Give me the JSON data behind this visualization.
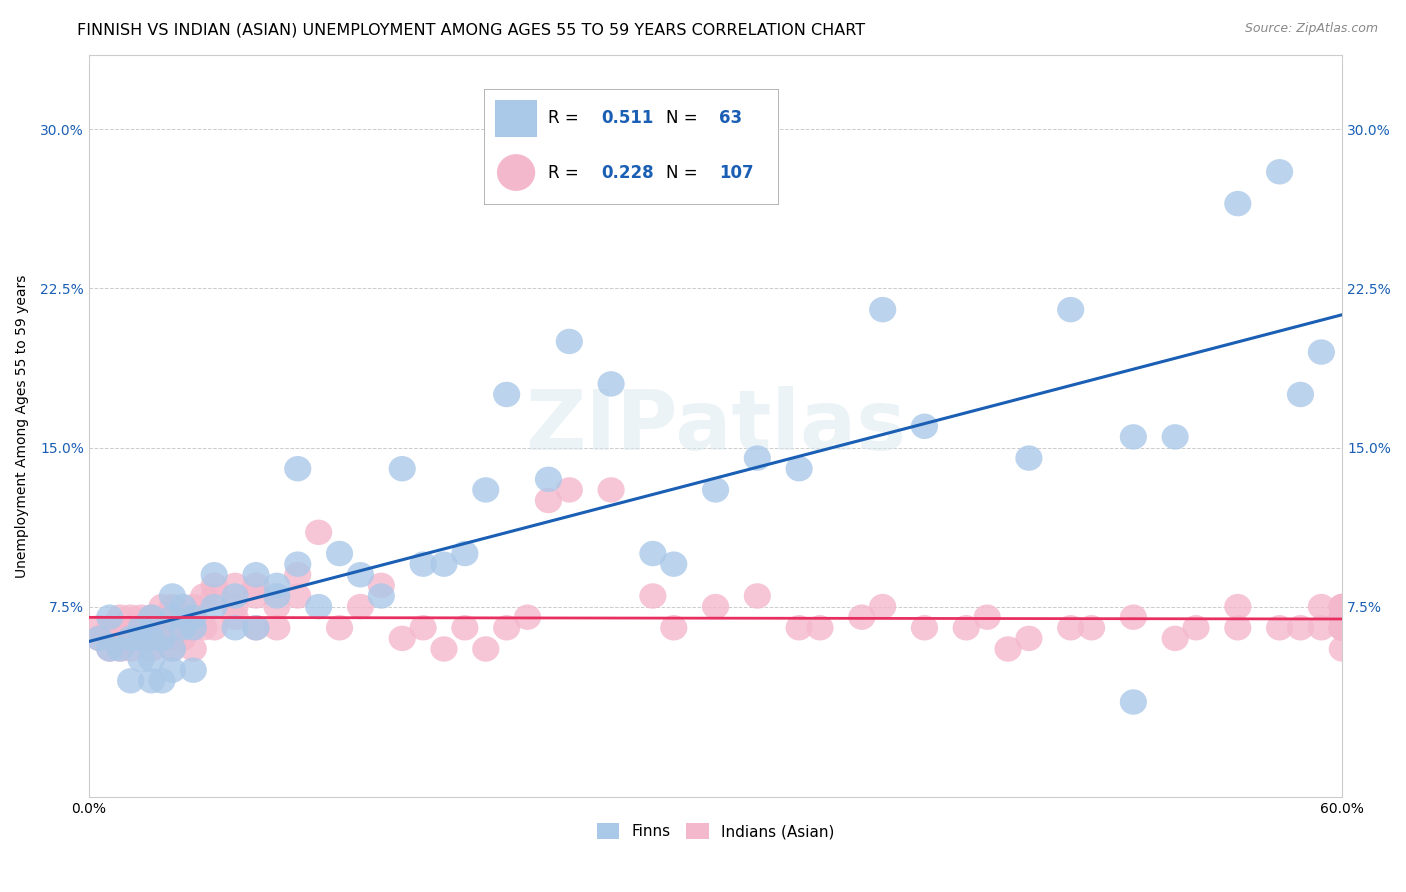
{
  "title": "FINNISH VS INDIAN (ASIAN) UNEMPLOYMENT AMONG AGES 55 TO 59 YEARS CORRELATION CHART",
  "source": "Source: ZipAtlas.com",
  "ylabel": "Unemployment Among Ages 55 to 59 years",
  "xlim": [
    0.0,
    0.6
  ],
  "ylim": [
    -0.015,
    0.335
  ],
  "yticks": [
    0.075,
    0.15,
    0.225,
    0.3
  ],
  "yticklabels": [
    "7.5%",
    "15.0%",
    "22.5%",
    "30.0%"
  ],
  "finn_color": "#aac8e8",
  "indian_color": "#f4b8cc",
  "finn_line_color": "#1a5fb4",
  "indian_line_color": "#e83060",
  "finn_R": 0.511,
  "finn_N": 63,
  "indian_R": 0.228,
  "indian_N": 107,
  "background_color": "#ffffff",
  "grid_color": "#cccccc",
  "watermark": "ZIPatlas",
  "title_fontsize": 11.5,
  "axis_label_fontsize": 10,
  "tick_fontsize": 10,
  "finn_x": [
    0.005,
    0.01,
    0.01,
    0.015,
    0.02,
    0.02,
    0.025,
    0.025,
    0.025,
    0.03,
    0.03,
    0.03,
    0.03,
    0.035,
    0.035,
    0.04,
    0.04,
    0.04,
    0.04,
    0.045,
    0.045,
    0.05,
    0.05,
    0.05,
    0.06,
    0.06,
    0.07,
    0.07,
    0.08,
    0.08,
    0.09,
    0.09,
    0.1,
    0.1,
    0.11,
    0.12,
    0.13,
    0.14,
    0.15,
    0.16,
    0.17,
    0.18,
    0.19,
    0.2,
    0.22,
    0.23,
    0.25,
    0.27,
    0.28,
    0.3,
    0.32,
    0.34,
    0.38,
    0.4,
    0.45,
    0.47,
    0.5,
    0.5,
    0.52,
    0.55,
    0.57,
    0.58,
    0.59
  ],
  "finn_y": [
    0.06,
    0.055,
    0.07,
    0.055,
    0.04,
    0.06,
    0.065,
    0.05,
    0.06,
    0.04,
    0.05,
    0.06,
    0.07,
    0.04,
    0.06,
    0.045,
    0.055,
    0.07,
    0.08,
    0.065,
    0.075,
    0.065,
    0.07,
    0.045,
    0.09,
    0.075,
    0.065,
    0.08,
    0.09,
    0.065,
    0.08,
    0.085,
    0.095,
    0.14,
    0.075,
    0.1,
    0.09,
    0.08,
    0.14,
    0.095,
    0.095,
    0.1,
    0.13,
    0.175,
    0.135,
    0.2,
    0.18,
    0.1,
    0.095,
    0.13,
    0.145,
    0.14,
    0.215,
    0.16,
    0.145,
    0.215,
    0.155,
    0.03,
    0.155,
    0.265,
    0.28,
    0.175,
    0.195
  ],
  "indian_x": [
    0.005,
    0.005,
    0.01,
    0.01,
    0.01,
    0.015,
    0.015,
    0.015,
    0.02,
    0.02,
    0.02,
    0.02,
    0.025,
    0.025,
    0.025,
    0.03,
    0.03,
    0.03,
    0.03,
    0.035,
    0.035,
    0.035,
    0.04,
    0.04,
    0.04,
    0.04,
    0.04,
    0.045,
    0.045,
    0.05,
    0.05,
    0.05,
    0.05,
    0.055,
    0.055,
    0.06,
    0.06,
    0.06,
    0.07,
    0.07,
    0.07,
    0.08,
    0.08,
    0.08,
    0.09,
    0.09,
    0.1,
    0.1,
    0.11,
    0.12,
    0.13,
    0.14,
    0.15,
    0.16,
    0.17,
    0.18,
    0.19,
    0.2,
    0.21,
    0.22,
    0.23,
    0.25,
    0.27,
    0.28,
    0.3,
    0.32,
    0.34,
    0.35,
    0.37,
    0.38,
    0.4,
    0.42,
    0.43,
    0.44,
    0.45,
    0.47,
    0.48,
    0.5,
    0.52,
    0.53,
    0.55,
    0.55,
    0.57,
    0.58,
    0.59,
    0.59,
    0.6,
    0.6,
    0.6,
    0.6,
    0.6,
    0.6,
    0.6,
    0.6,
    0.6,
    0.6,
    0.6,
    0.6,
    0.6,
    0.6,
    0.6,
    0.6,
    0.6,
    0.6,
    0.6,
    0.6,
    0.6
  ],
  "indian_y": [
    0.065,
    0.06,
    0.06,
    0.065,
    0.055,
    0.07,
    0.06,
    0.055,
    0.065,
    0.07,
    0.06,
    0.055,
    0.06,
    0.07,
    0.065,
    0.06,
    0.065,
    0.055,
    0.07,
    0.065,
    0.06,
    0.075,
    0.065,
    0.06,
    0.07,
    0.055,
    0.075,
    0.06,
    0.065,
    0.07,
    0.065,
    0.055,
    0.075,
    0.08,
    0.065,
    0.08,
    0.085,
    0.065,
    0.085,
    0.075,
    0.07,
    0.085,
    0.065,
    0.08,
    0.075,
    0.065,
    0.09,
    0.08,
    0.11,
    0.065,
    0.075,
    0.085,
    0.06,
    0.065,
    0.055,
    0.065,
    0.055,
    0.065,
    0.07,
    0.125,
    0.13,
    0.13,
    0.08,
    0.065,
    0.075,
    0.08,
    0.065,
    0.065,
    0.07,
    0.075,
    0.065,
    0.065,
    0.07,
    0.055,
    0.06,
    0.065,
    0.065,
    0.07,
    0.06,
    0.065,
    0.065,
    0.075,
    0.065,
    0.065,
    0.065,
    0.075,
    0.055,
    0.065,
    0.07,
    0.065,
    0.065,
    0.075,
    0.065,
    0.075,
    0.065,
    0.07,
    0.065,
    0.065,
    0.065,
    0.075,
    0.065,
    0.075,
    0.065,
    0.07,
    0.065,
    0.065,
    0.075
  ]
}
